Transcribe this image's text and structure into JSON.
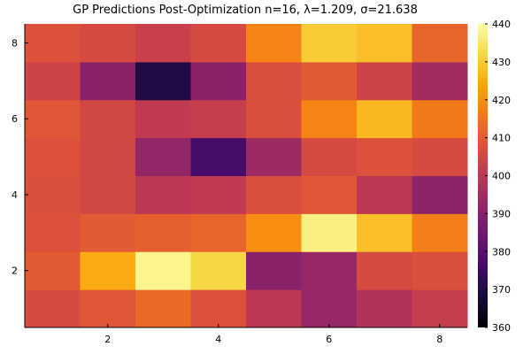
{
  "chart_data": {
    "type": "heatmap",
    "title": "GP Predictions Post-Optimization n=16, λ=1.209, σ=21.638",
    "xlabel": "",
    "ylabel": "",
    "x_categories": [
      1,
      2,
      3,
      4,
      5,
      6,
      7,
      8
    ],
    "y_categories": [
      1,
      2,
      3,
      4,
      5,
      6,
      7,
      8
    ],
    "xlim": [
      0.5,
      8.5
    ],
    "ylim": [
      0.5,
      8.5
    ],
    "x_ticks": [
      2,
      4,
      6,
      8
    ],
    "y_ticks": [
      2,
      4,
      6,
      8
    ],
    "x_tick_labels": [
      "2",
      "4",
      "6",
      "8"
    ],
    "y_tick_labels": [
      "2",
      "4",
      "6",
      "8"
    ],
    "values": [
      [
        406,
        409,
        413,
        408,
        400,
        393,
        398,
        402
      ],
      [
        410,
        425,
        438,
        432,
        390,
        393,
        406,
        407
      ],
      [
        408,
        410,
        411,
        412,
        420,
        437,
        428,
        417
      ],
      [
        407,
        405,
        400,
        401,
        407,
        409,
        400,
        391
      ],
      [
        408,
        405,
        392,
        377,
        394,
        406,
        408,
        406
      ],
      [
        409,
        405,
        401,
        402,
        407,
        418,
        427,
        416
      ],
      [
        404,
        390,
        370,
        390,
        407,
        410,
        404,
        395
      ],
      [
        408,
        406,
        403,
        406,
        418,
        430,
        428,
        412
      ]
    ],
    "colorbar": {
      "min": 360,
      "max": 440,
      "ticks": [
        360,
        370,
        380,
        390,
        400,
        410,
        420,
        430,
        440
      ],
      "tick_labels": [
        "360",
        "370",
        "380",
        "390",
        "400",
        "410",
        "420",
        "430",
        "440"
      ],
      "colormap": "inferno"
    },
    "grid": false,
    "legend": "none"
  }
}
